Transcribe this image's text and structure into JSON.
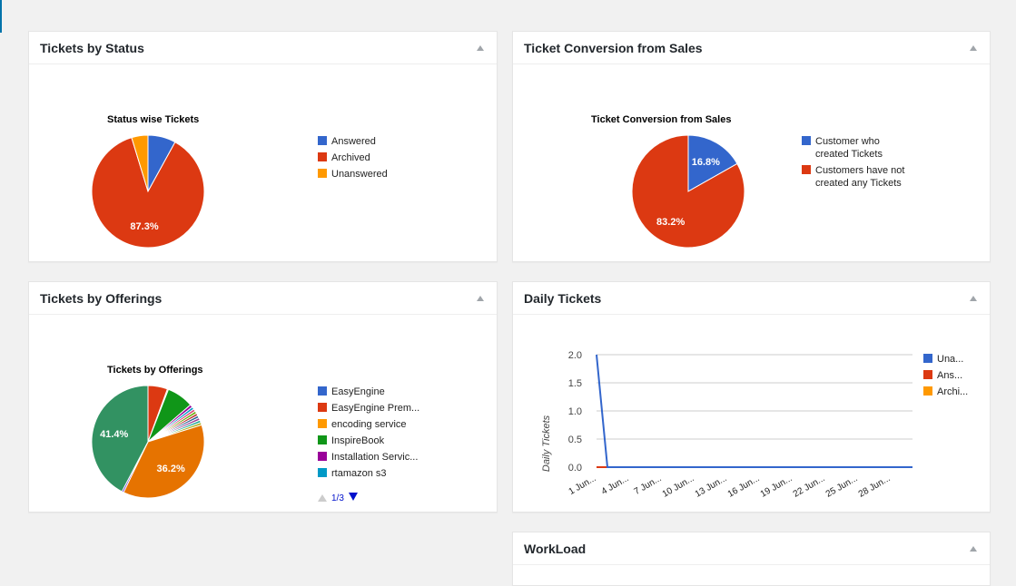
{
  "panels": {
    "status": {
      "title": "Tickets by Status",
      "chart_data": {
        "type": "pie",
        "title": "Status wise Tickets",
        "slices": [
          {
            "label": "Answered",
            "value": 8.0,
            "color": "#3366cc"
          },
          {
            "label": "Archived",
            "value": 87.3,
            "color": "#dc3912",
            "shown_label": "87.3%"
          },
          {
            "label": "Unanswered",
            "value": 4.7,
            "color": "#ff9900"
          }
        ]
      }
    },
    "conversion": {
      "title": "Ticket Conversion from Sales",
      "chart_data": {
        "type": "pie",
        "title": "Ticket Conversion from Sales",
        "slices": [
          {
            "label": "Customer who created Tickets",
            "label_lines": [
              "Customer who",
              "created Tickets"
            ],
            "value": 16.8,
            "color": "#3366cc",
            "shown_label": "16.8%"
          },
          {
            "label": "Customers have not created any Tickets",
            "label_lines": [
              "Customers have not",
              "created any Tickets"
            ],
            "value": 83.2,
            "color": "#dc3912",
            "shown_label": "83.2%"
          }
        ]
      }
    },
    "offerings": {
      "title": "Tickets by Offerings",
      "pager": "1/3",
      "chart_data": {
        "type": "pie",
        "title": "Tickets by Offerings",
        "legend_visible": [
          "EasyEngine",
          "EasyEngine Prem...",
          "encoding service",
          "InspireBook",
          "Installation Servic...",
          "rtamazon s3"
        ],
        "slices": [
          {
            "label": "",
            "value": 5.5,
            "color": "#dc3912"
          },
          {
            "label": "",
            "value": 0.3,
            "color": "#ff9900"
          },
          {
            "label": "",
            "value": 7.5,
            "color": "#109618"
          },
          {
            "label": "",
            "value": 0.8,
            "color": "#990099"
          },
          {
            "label": "",
            "value": 0.7,
            "color": "#0099c6"
          },
          {
            "label": "",
            "value": 0.7,
            "color": "#dd4477"
          },
          {
            "label": "",
            "value": 0.7,
            "color": "#66aa00"
          },
          {
            "label": "",
            "value": 0.7,
            "color": "#b82e2e"
          },
          {
            "label": "",
            "value": 0.7,
            "color": "#316395"
          },
          {
            "label": "",
            "value": 0.7,
            "color": "#994499"
          },
          {
            "label": "",
            "value": 0.7,
            "color": "#22aa99"
          },
          {
            "label": "",
            "value": 0.7,
            "color": "#aaaa11"
          },
          {
            "label": "",
            "value": 36.2,
            "color": "#e67300",
            "shown_label": "36.2%"
          },
          {
            "label": "",
            "value": 0.5,
            "color": "#6633cc"
          },
          {
            "label": "",
            "value": 41.4,
            "color": "#329262",
            "shown_label": "41.4%"
          }
        ],
        "legend_colors": [
          "#3366cc",
          "#dc3912",
          "#ff9900",
          "#109618",
          "#990099",
          "#0099c6"
        ]
      }
    },
    "daily": {
      "title": "Daily Tickets",
      "chart_data": {
        "type": "line",
        "ylabel": "Daily Tickets",
        "ylim": [
          0,
          2
        ],
        "yticks": [
          "2.0",
          "1.5",
          "1.0",
          "0.5",
          "0.0"
        ],
        "x_tick_labels": [
          "1 Jun...",
          "4 Jun...",
          "7 Jun...",
          "10 Jun...",
          "13 Jun...",
          "16 Jun...",
          "19 Jun...",
          "22 Jun...",
          "25 Jun...",
          "28 Jun..."
        ],
        "x_days": [
          1,
          30
        ],
        "series": [
          {
            "name": "Una...",
            "color": "#3366cc",
            "points": [
              [
                1,
                2
              ],
              [
                2,
                0
              ],
              [
                30,
                0
              ]
            ]
          },
          {
            "name": "Ans...",
            "color": "#dc3912",
            "points": [
              [
                1,
                0
              ],
              [
                30,
                0
              ]
            ]
          },
          {
            "name": "Archi...",
            "color": "#ff9900",
            "points": [
              [
                1,
                0
              ],
              [
                30,
                0
              ]
            ]
          }
        ]
      }
    },
    "workload": {
      "title": "WorkLoad"
    }
  }
}
